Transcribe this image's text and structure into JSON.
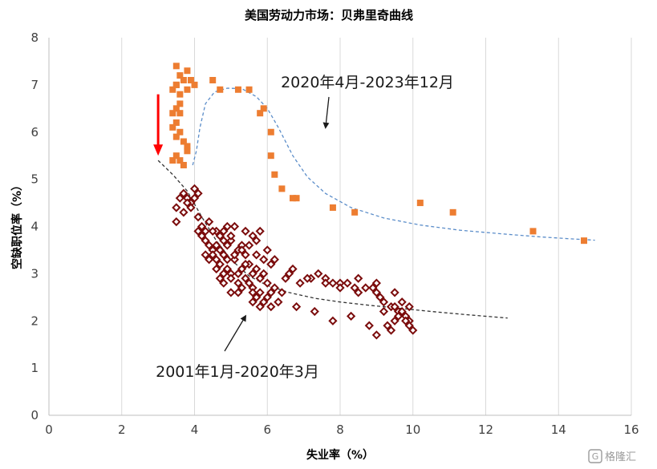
{
  "chart_data": {
    "type": "scatter",
    "title": "美国劳动力市场：贝弗里奇曲线",
    "xlabel": "失业率（%）",
    "ylabel": "空缺职位率（%）",
    "xlim": [
      0,
      16
    ],
    "ylim": [
      0,
      8
    ],
    "xticks": [
      0,
      2,
      4,
      6,
      8,
      10,
      12,
      14,
      16
    ],
    "yticks": [
      0,
      1,
      2,
      3,
      4,
      5,
      6,
      7,
      8
    ],
    "grid": "vertical",
    "annotations": [
      {
        "text": "2020年4月-2023年12月",
        "arrow_to": [
          7.6,
          6.1
        ]
      },
      {
        "text": "2001年1月-2020年3月",
        "arrow_to": [
          5.4,
          2.1
        ]
      }
    ],
    "series": [
      {
        "name": "2020年4月-2023年12月",
        "color": "#ED7D31",
        "marker": "square",
        "points": [
          [
            3.5,
            7.4
          ],
          [
            3.6,
            7.2
          ],
          [
            3.7,
            7.1
          ],
          [
            3.8,
            7.3
          ],
          [
            3.9,
            7.1
          ],
          [
            4.0,
            7.0
          ],
          [
            3.8,
            6.9
          ],
          [
            3.5,
            7.0
          ],
          [
            3.6,
            6.8
          ],
          [
            3.4,
            6.4
          ],
          [
            3.5,
            6.2
          ],
          [
            3.6,
            6.6
          ],
          [
            3.4,
            6.9
          ],
          [
            3.5,
            6.5
          ],
          [
            3.6,
            6.0
          ],
          [
            3.5,
            5.9
          ],
          [
            3.7,
            5.8
          ],
          [
            3.8,
            5.7
          ],
          [
            3.8,
            5.6
          ],
          [
            3.5,
            5.5
          ],
          [
            3.6,
            5.4
          ],
          [
            3.4,
            5.4
          ],
          [
            3.7,
            5.3
          ],
          [
            3.6,
            6.4
          ],
          [
            3.5,
            7.0
          ],
          [
            3.4,
            6.1
          ],
          [
            4.5,
            7.1
          ],
          [
            4.7,
            6.9
          ],
          [
            5.2,
            6.9
          ],
          [
            5.5,
            6.9
          ],
          [
            5.8,
            6.4
          ],
          [
            5.9,
            6.5
          ],
          [
            6.1,
            6.0
          ],
          [
            6.1,
            5.5
          ],
          [
            6.2,
            5.1
          ],
          [
            6.4,
            4.8
          ],
          [
            6.8,
            4.6
          ],
          [
            6.7,
            4.6
          ],
          [
            7.8,
            4.4
          ],
          [
            8.4,
            4.3
          ],
          [
            10.2,
            4.5
          ],
          [
            11.1,
            4.3
          ],
          [
            13.3,
            3.9
          ],
          [
            14.7,
            3.7
          ]
        ]
      },
      {
        "name": "2001年1月-2020年3月",
        "color": "#7B0C0C",
        "marker": "diamond",
        "points": [
          [
            3.5,
            4.4
          ],
          [
            3.6,
            4.6
          ],
          [
            3.7,
            4.7
          ],
          [
            3.8,
            4.6
          ],
          [
            3.9,
            4.5
          ],
          [
            4.0,
            4.8
          ],
          [
            4.1,
            4.7
          ],
          [
            3.7,
            4.3
          ],
          [
            3.5,
            4.1
          ],
          [
            4.0,
            4.6
          ],
          [
            3.8,
            4.5
          ],
          [
            3.9,
            4.4
          ],
          [
            4.1,
            4.2
          ],
          [
            4.2,
            4.0
          ],
          [
            4.3,
            3.9
          ],
          [
            4.4,
            4.1
          ],
          [
            4.2,
            3.8
          ],
          [
            4.4,
            3.6
          ],
          [
            4.5,
            3.5
          ],
          [
            4.6,
            3.3
          ],
          [
            4.3,
            3.4
          ],
          [
            4.7,
            3.2
          ],
          [
            4.8,
            3.4
          ],
          [
            4.9,
            3.1
          ],
          [
            5.0,
            3.0
          ],
          [
            5.1,
            3.3
          ],
          [
            5.3,
            3.1
          ],
          [
            5.4,
            2.9
          ],
          [
            5.5,
            2.8
          ],
          [
            5.6,
            2.7
          ],
          [
            5.8,
            2.6
          ],
          [
            6.0,
            2.5
          ],
          [
            6.1,
            2.3
          ],
          [
            5.9,
            2.4
          ],
          [
            5.7,
            2.5
          ],
          [
            5.6,
            2.6
          ],
          [
            5.3,
            2.7
          ],
          [
            5.2,
            2.8
          ],
          [
            5.0,
            2.9
          ],
          [
            4.8,
            3.0
          ],
          [
            4.6,
            3.1
          ],
          [
            4.9,
            3.6
          ],
          [
            5.0,
            3.7
          ],
          [
            5.2,
            3.5
          ],
          [
            5.4,
            3.4
          ],
          [
            5.5,
            3.6
          ],
          [
            5.7,
            3.7
          ],
          [
            5.8,
            3.9
          ],
          [
            5.6,
            3.8
          ],
          [
            5.4,
            3.9
          ],
          [
            5.1,
            4.0
          ],
          [
            4.9,
            4.0
          ],
          [
            4.8,
            3.9
          ],
          [
            4.7,
            3.8
          ],
          [
            4.6,
            3.9
          ],
          [
            5.0,
            3.8
          ],
          [
            5.3,
            3.6
          ],
          [
            5.5,
            3.2
          ],
          [
            5.6,
            3.0
          ],
          [
            5.8,
            2.9
          ],
          [
            6.0,
            2.8
          ],
          [
            6.2,
            2.7
          ],
          [
            6.4,
            2.6
          ],
          [
            6.5,
            2.9
          ],
          [
            6.7,
            3.1
          ],
          [
            6.9,
            2.8
          ],
          [
            7.2,
            2.9
          ],
          [
            7.4,
            3.0
          ],
          [
            7.6,
            2.9
          ],
          [
            7.8,
            2.8
          ],
          [
            8.0,
            2.8
          ],
          [
            8.2,
            2.8
          ],
          [
            8.4,
            2.7
          ],
          [
            8.5,
            2.6
          ],
          [
            8.7,
            2.7
          ],
          [
            8.9,
            2.7
          ],
          [
            9.0,
            2.6
          ],
          [
            9.1,
            2.5
          ],
          [
            9.2,
            2.4
          ],
          [
            9.4,
            2.3
          ],
          [
            9.5,
            2.3
          ],
          [
            9.6,
            2.2
          ],
          [
            9.7,
            2.2
          ],
          [
            9.8,
            2.1
          ],
          [
            9.9,
            2.0
          ],
          [
            10.0,
            1.8
          ],
          [
            9.9,
            1.9
          ],
          [
            9.8,
            2.0
          ],
          [
            9.6,
            2.1
          ],
          [
            9.5,
            2.0
          ],
          [
            9.4,
            1.8
          ],
          [
            9.3,
            1.9
          ],
          [
            9.0,
            1.7
          ],
          [
            9.2,
            2.2
          ],
          [
            8.8,
            1.9
          ],
          [
            8.3,
            2.1
          ],
          [
            7.8,
            2.0
          ],
          [
            7.3,
            2.2
          ],
          [
            6.8,
            2.3
          ],
          [
            6.3,
            2.4
          ],
          [
            9.7,
            2.4
          ],
          [
            9.9,
            2.3
          ],
          [
            9.5,
            2.6
          ],
          [
            9.0,
            2.8
          ],
          [
            8.5,
            2.9
          ],
          [
            8.0,
            2.7
          ],
          [
            7.6,
            2.8
          ],
          [
            7.1,
            2.9
          ],
          [
            6.6,
            3.0
          ],
          [
            6.1,
            3.2
          ],
          [
            6.2,
            3.3
          ],
          [
            6.0,
            3.5
          ],
          [
            5.9,
            3.3
          ],
          [
            5.7,
            3.4
          ],
          [
            5.3,
            3.5
          ],
          [
            5.1,
            3.4
          ],
          [
            4.9,
            3.3
          ],
          [
            4.7,
            3.5
          ],
          [
            4.5,
            3.4
          ],
          [
            4.4,
            3.3
          ],
          [
            4.6,
            3.6
          ],
          [
            4.8,
            3.7
          ],
          [
            4.3,
            3.7
          ],
          [
            4.1,
            3.9
          ],
          [
            4.5,
            3.9
          ],
          [
            5.2,
            3.0
          ],
          [
            5.4,
            3.2
          ],
          [
            5.7,
            3.1
          ],
          [
            5.9,
            3.0
          ],
          [
            5.6,
            2.4
          ],
          [
            5.8,
            2.3
          ],
          [
            6.1,
            2.6
          ],
          [
            5.2,
            2.6
          ],
          [
            5.0,
            2.6
          ],
          [
            4.8,
            2.8
          ],
          [
            4.7,
            2.9
          ]
        ]
      },
      {
        "name": "趋势线 2020-2023",
        "color": "#5B8DC9",
        "type": "line",
        "dashed": true,
        "points": [
          [
            3.95,
            5.3
          ],
          [
            4.05,
            5.6
          ],
          [
            4.15,
            6.1
          ],
          [
            4.3,
            6.6
          ],
          [
            4.55,
            6.85
          ],
          [
            4.9,
            6.93
          ],
          [
            5.3,
            6.92
          ],
          [
            5.7,
            6.75
          ],
          [
            6.0,
            6.5
          ],
          [
            6.3,
            6.1
          ],
          [
            6.7,
            5.5
          ],
          [
            7.1,
            5.05
          ],
          [
            7.6,
            4.7
          ],
          [
            8.3,
            4.4
          ],
          [
            9.2,
            4.18
          ],
          [
            10.2,
            4.03
          ],
          [
            11.3,
            3.92
          ],
          [
            12.5,
            3.84
          ],
          [
            13.5,
            3.78
          ],
          [
            14.3,
            3.74
          ],
          [
            15.0,
            3.71
          ]
        ]
      },
      {
        "name": "趋势线 2001-2020",
        "color": "#333333",
        "type": "line",
        "dashed": true,
        "points": [
          [
            3.0,
            5.4
          ],
          [
            3.4,
            5.1
          ],
          [
            3.8,
            4.75
          ],
          [
            4.2,
            4.2
          ],
          [
            4.6,
            3.7
          ],
          [
            5.0,
            3.3
          ],
          [
            5.5,
            2.95
          ],
          [
            6.0,
            2.75
          ],
          [
            6.6,
            2.6
          ],
          [
            7.3,
            2.48
          ],
          [
            8.0,
            2.4
          ],
          [
            8.8,
            2.33
          ],
          [
            9.6,
            2.27
          ],
          [
            10.5,
            2.2
          ],
          [
            11.5,
            2.13
          ],
          [
            12.6,
            2.06
          ]
        ]
      },
      {
        "name": "下移箭头",
        "color": "#FF0000",
        "type": "arrow",
        "points": [
          [
            3.0,
            6.8
          ],
          [
            3.0,
            5.5
          ]
        ]
      }
    ]
  },
  "watermark": "格隆汇"
}
